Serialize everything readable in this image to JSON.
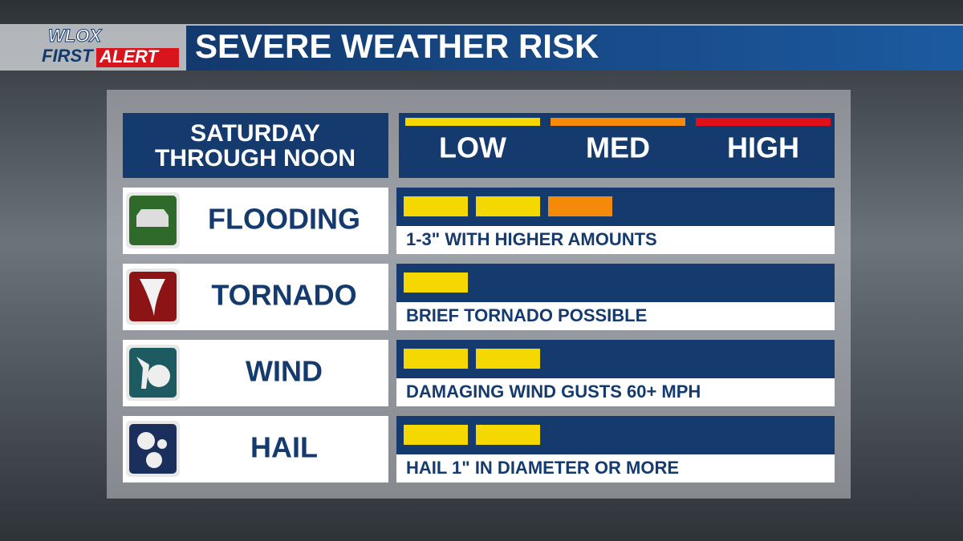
{
  "logo": {
    "station": "WLOX",
    "first": "FIRST",
    "alert": "ALERT"
  },
  "header": {
    "title": "SEVERE WEATHER RISK"
  },
  "period": "SATURDAY THROUGH NOON",
  "scale": {
    "segments_per_level": 2,
    "levels": [
      {
        "label": "LOW",
        "color": "#f5d800"
      },
      {
        "label": "MED",
        "color": "#f58a0a"
      },
      {
        "label": "HIGH",
        "color": "#e0101a"
      }
    ]
  },
  "hazards": [
    {
      "name": "FLOODING",
      "level": 3,
      "description": "1-3\" WITH HIGHER AMOUNTS",
      "icon_color": "#2f6a2a"
    },
    {
      "name": "TORNADO",
      "level": 1,
      "description": "BRIEF TORNADO POSSIBLE",
      "icon_color": "#8c1414"
    },
    {
      "name": "WIND",
      "level": 2,
      "description": "DAMAGING WIND GUSTS 60+ MPH",
      "icon_color": "#1e5a62"
    },
    {
      "name": "HAIL",
      "level": 2,
      "description": "HAIL 1\" IN DIAMETER OR MORE",
      "icon_color": "#1b2f5c"
    }
  ]
}
